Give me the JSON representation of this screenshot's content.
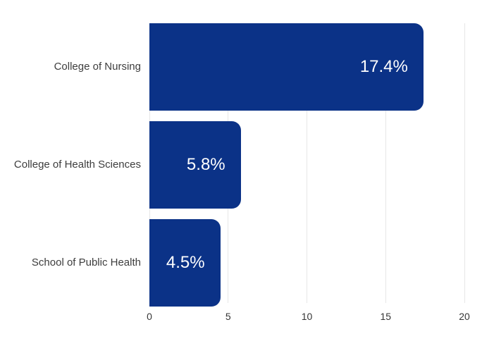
{
  "chart_data": {
    "type": "bar",
    "orientation": "horizontal",
    "title": "",
    "xlabel": "",
    "ylabel": "",
    "categories": [
      "College of Nursing",
      "College of Health Sciences",
      "School of Public Health"
    ],
    "values": [
      17.4,
      5.8,
      4.5
    ],
    "value_labels": [
      "17.4%",
      "5.8%",
      "4.5%"
    ],
    "xlim": [
      0,
      20
    ],
    "x_ticks": [
      "0",
      "5",
      "10",
      "15",
      "20"
    ],
    "grid": true,
    "legend": false,
    "colors": {
      "bar": "#0b3287",
      "value_label": "#ffffff",
      "category_label": "#3d3d3d",
      "tick_label": "#363636",
      "gridline": "#e7e7e7",
      "background": "#ffffff"
    }
  }
}
